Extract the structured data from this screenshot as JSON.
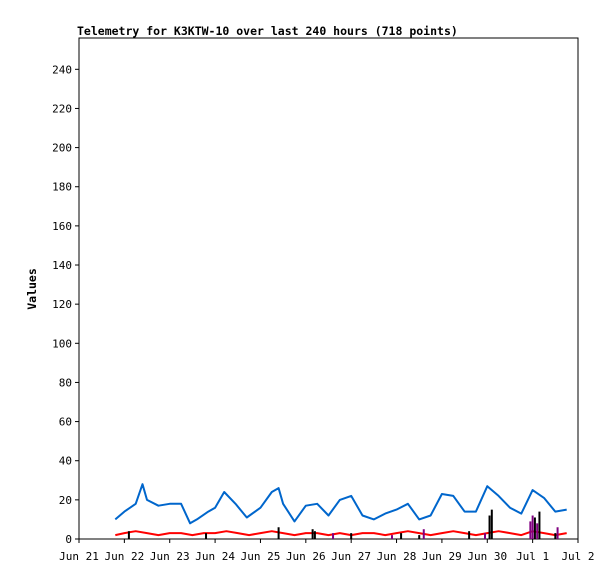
{
  "chart_data": {
    "type": "line",
    "title": "Telemetry for K3KTW-10 over last 240 hours (718 points)",
    "xlabel": "",
    "ylabel": "Values",
    "ylim": [
      0,
      256
    ],
    "yticks": [
      0,
      20,
      40,
      60,
      80,
      100,
      120,
      140,
      160,
      180,
      200,
      220,
      240
    ],
    "x_domain": [
      "2025-06-21",
      "2025-07-02"
    ],
    "xtick_labels": [
      "Jun 21",
      "Jun 22",
      "Jun 23",
      "Jun 24",
      "Jun 25",
      "Jun 26",
      "Jun 27",
      "Jun 28",
      "Jun 29",
      "Jun 30",
      "Jul 1",
      "Jul 2"
    ],
    "legend": "none",
    "grid": false,
    "series": [
      {
        "color": "#0066cc",
        "x": [
          21.8,
          22.0,
          22.25,
          22.4,
          22.5,
          22.75,
          23.0,
          23.25,
          23.45,
          23.6,
          23.85,
          24.0,
          24.2,
          24.45,
          24.7,
          25.0,
          25.25,
          25.4,
          25.5,
          25.75,
          26.0,
          26.25,
          26.5,
          26.75,
          27.0,
          27.25,
          27.5,
          27.75,
          28.0,
          28.25,
          28.5,
          28.75,
          29.0,
          29.25,
          29.5,
          29.75,
          30.0,
          30.25,
          30.5,
          30.75,
          31.0,
          31.25,
          31.5,
          31.75
        ],
        "y": [
          10,
          14,
          18,
          28,
          20,
          17,
          18,
          18,
          8,
          10,
          14,
          16,
          24,
          18,
          11,
          16,
          24,
          26,
          18,
          9,
          17,
          18,
          12,
          20,
          22,
          12,
          10,
          13,
          15,
          18,
          10,
          12,
          23,
          22,
          14,
          14,
          27,
          22,
          16,
          13,
          25,
          21,
          14,
          15
        ]
      },
      {
        "color": "#ff0000",
        "x": [
          21.8,
          22.0,
          22.25,
          22.5,
          22.75,
          23.0,
          23.25,
          23.5,
          23.75,
          24.0,
          24.25,
          24.5,
          24.75,
          25.0,
          25.25,
          25.5,
          25.75,
          26.0,
          26.25,
          26.5,
          26.75,
          27.0,
          27.25,
          27.5,
          27.75,
          28.0,
          28.25,
          28.5,
          28.75,
          29.0,
          29.25,
          29.5,
          29.75,
          30.0,
          30.25,
          30.5,
          30.75,
          31.0,
          31.25,
          31.5,
          31.75
        ],
        "y": [
          2,
          3,
          4,
          3,
          2,
          3,
          3,
          2,
          3,
          3,
          4,
          3,
          2,
          3,
          4,
          3,
          2,
          3,
          3,
          2,
          3,
          2,
          3,
          3,
          2,
          3,
          4,
          3,
          2,
          3,
          4,
          3,
          2,
          3,
          4,
          3,
          2,
          4,
          3,
          2,
          3
        ]
      },
      {
        "color": "#000000",
        "type": "spikes",
        "x": [
          22.1,
          23.8,
          25.4,
          26.15,
          26.2,
          27.0,
          28.1,
          28.5,
          29.6,
          30.05,
          30.1,
          31.05,
          31.15,
          31.5
        ],
        "y": [
          4,
          3,
          6,
          5,
          4,
          3,
          3,
          2,
          4,
          12,
          15,
          11,
          14,
          3
        ]
      },
      {
        "color": "#800080",
        "type": "spikes",
        "x": [
          26.6,
          27.9,
          28.6,
          29.95,
          30.95,
          31.0,
          31.1,
          31.55
        ],
        "y": [
          3,
          2,
          5,
          3,
          9,
          12,
          8,
          6
        ]
      }
    ]
  }
}
